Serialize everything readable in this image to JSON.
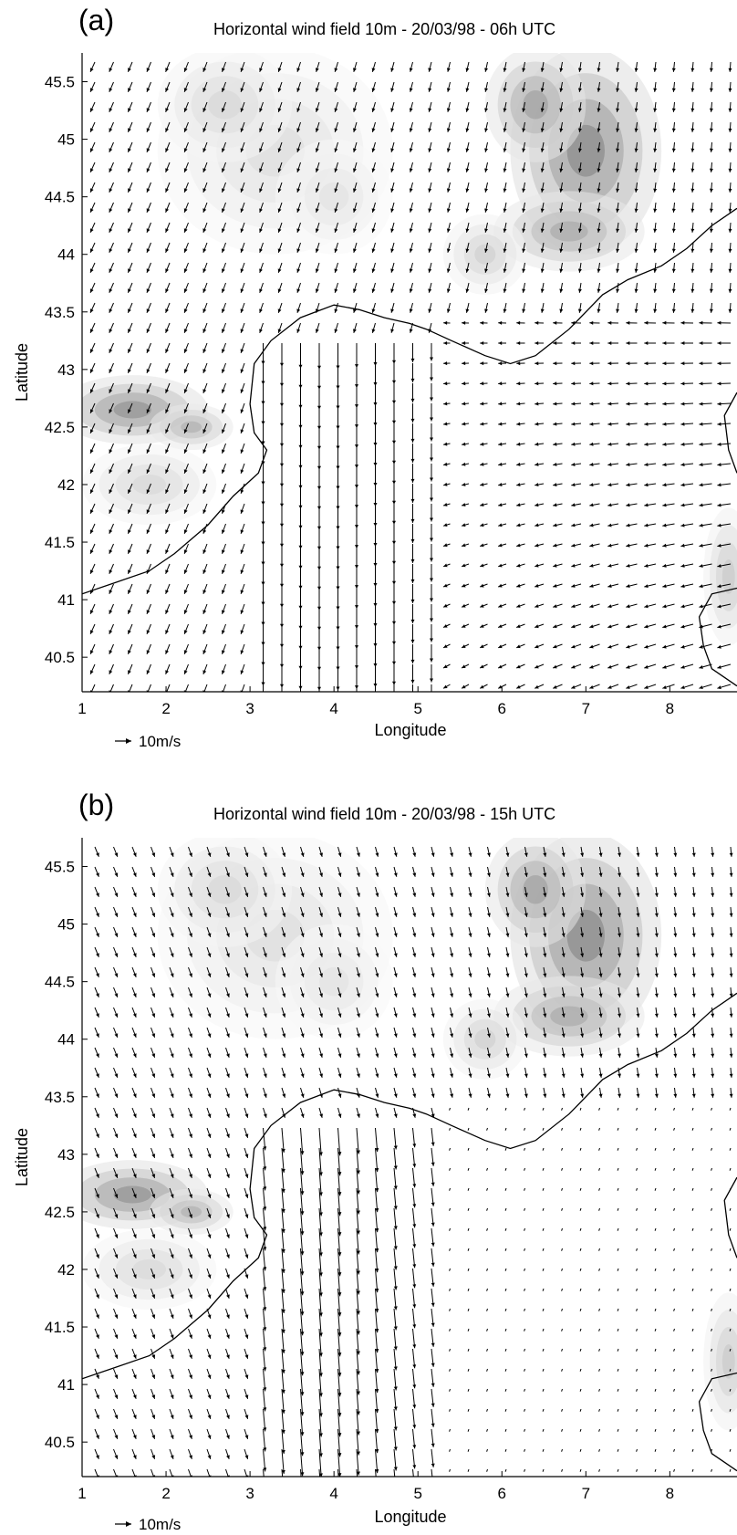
{
  "panels": [
    {
      "id": "a",
      "letter": "(a)",
      "title": "Horizontal wind field 10m - 20/03/98 - 06h UTC",
      "xlabel": "Longitude",
      "ylabel": "Latitude",
      "reference_vector": "10m/s",
      "x_ticks": [
        "1",
        "2",
        "3",
        "4",
        "5",
        "6",
        "7",
        "8"
      ],
      "y_ticks": [
        "45.5",
        "45",
        "44.5",
        "44",
        "43.5",
        "43",
        "42.5",
        "42",
        "41.5",
        "41",
        "40.5"
      ],
      "time": "06h"
    },
    {
      "id": "b",
      "letter": "(b)",
      "title": "Horizontal wind field 10m - 20/03/98 - 15h UTC",
      "xlabel": "Longitude",
      "ylabel": "Latitude",
      "reference_vector": "10m/s",
      "x_ticks": [
        "1",
        "2",
        "3",
        "4",
        "5",
        "6",
        "7",
        "8"
      ],
      "y_ticks": [
        "45.5",
        "45",
        "44.5",
        "44",
        "43.5",
        "43",
        "42.5",
        "42",
        "41.5",
        "41",
        "40.5"
      ],
      "time": "15h"
    }
  ],
  "map_extent": {
    "lon": [
      1,
      8.8
    ],
    "lat": [
      40.2,
      45.75
    ]
  },
  "colors": {
    "terrain_low": "#ffffff",
    "terrain_high": "#444444",
    "coast": "#000000",
    "arrow": "#000000"
  },
  "icons": [
    "arrow-icon"
  ]
}
